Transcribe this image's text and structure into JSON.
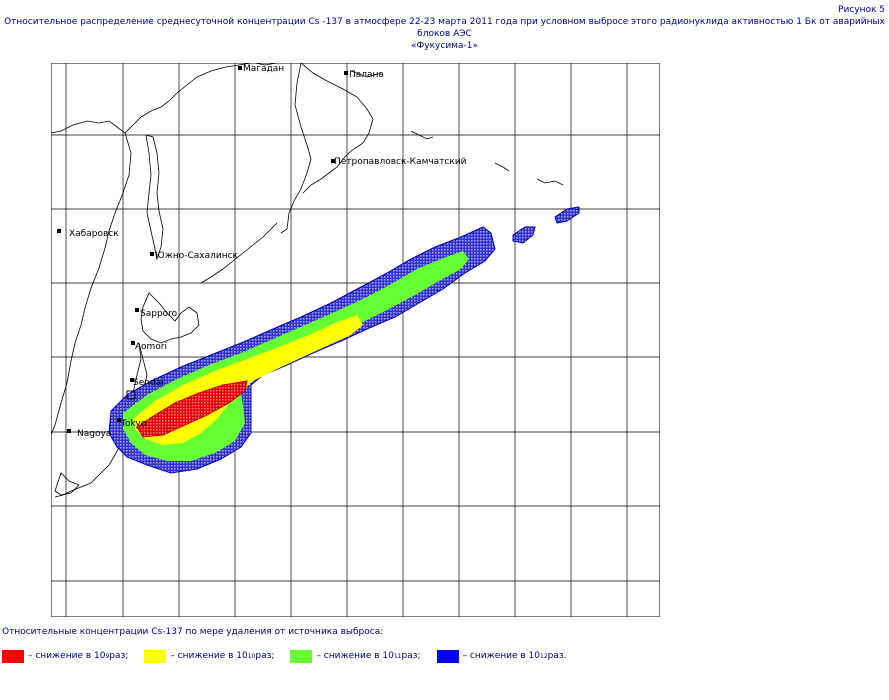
{
  "figure_number": "Рисунок 5",
  "title_line1": "Относительное распределение среднесуточной концентрации Cs -137 в атмосфере 22-23 марта 2011 года при условном выбросе этого радионуклида активностью  1 Бк от  аварийных блоков АЭС",
  "title_line2": "«Фукусима-1»",
  "map": {
    "cities": [
      {
        "name": "Магадан"
      },
      {
        "name": "Палана"
      },
      {
        "name": "Петропавловск-Камчатский"
      },
      {
        "name": "Хабаровск"
      },
      {
        "name": "Южно-Сахалинск"
      },
      {
        "name": "Sapporo"
      },
      {
        "name": "Aomori"
      },
      {
        "name": "Sendai"
      },
      {
        "name": "Tokyo"
      },
      {
        "name": "Nagoya"
      }
    ]
  },
  "legend": {
    "heading": "Относительные концентрации Cs-137 по мере удаления от источника выброса:",
    "items": [
      {
        "prefix": "– снижение в 10",
        "exponent": "9",
        "suffix": " раз;",
        "color": "#ff0000"
      },
      {
        "prefix": "– снижение в 10",
        "exponent": "10",
        "suffix": " раз;",
        "color": "#ffff00"
      },
      {
        "prefix": "– снижение в 10",
        "exponent": "11",
        "suffix": " раз;",
        "color": "#66ff33"
      },
      {
        "prefix": "– снижение в 10",
        "exponent": "12",
        "suffix": " раз.",
        "color": "#0000ff"
      }
    ]
  }
}
